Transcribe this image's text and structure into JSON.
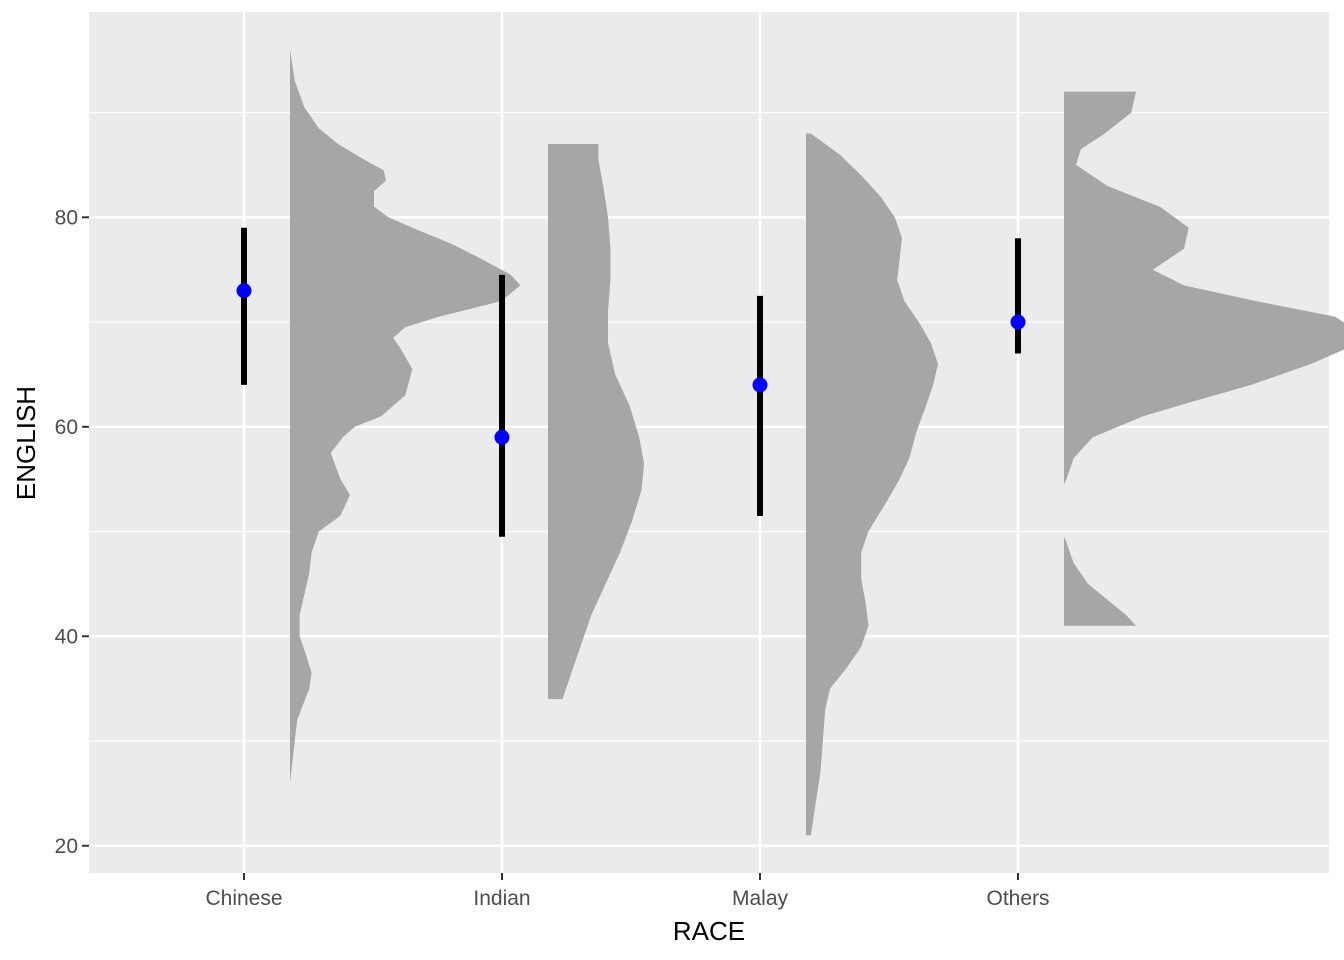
{
  "chart_data": {
    "type": "raincloud",
    "xlabel": "RACE",
    "ylabel": "ENGLISH",
    "ylim": [
      17.4,
      99.6
    ],
    "yticks": [
      20,
      40,
      60,
      80
    ],
    "grid": true,
    "panel_background": "#ebebeb",
    "grid_color": "#ffffff",
    "density_fill": "#a6a6a6",
    "point_color": "#0000ff",
    "interval_color": "#000000",
    "categories": [
      "Chinese",
      "Indian",
      "Malay",
      "Others"
    ],
    "groups": [
      {
        "category": "Chinese",
        "median": 73,
        "interval": [
          64,
          79
        ],
        "density": [
          [
            26,
            0.0
          ],
          [
            28,
            0.01
          ],
          [
            30,
            0.02
          ],
          [
            32,
            0.03
          ],
          [
            35,
            0.08
          ],
          [
            36.5,
            0.09
          ],
          [
            38,
            0.07
          ],
          [
            40,
            0.04
          ],
          [
            42,
            0.04
          ],
          [
            44,
            0.06
          ],
          [
            46,
            0.08
          ],
          [
            48,
            0.09
          ],
          [
            50,
            0.12
          ],
          [
            51.5,
            0.21
          ],
          [
            53.5,
            0.25
          ],
          [
            55,
            0.21
          ],
          [
            57.5,
            0.17
          ],
          [
            59,
            0.22
          ],
          [
            60,
            0.27
          ],
          [
            61,
            0.38
          ],
          [
            63,
            0.48
          ],
          [
            65.5,
            0.51
          ],
          [
            67.5,
            0.46
          ],
          [
            68.5,
            0.43
          ],
          [
            69.5,
            0.48
          ],
          [
            70.5,
            0.62
          ],
          [
            72,
            0.88
          ],
          [
            73.5,
            0.96
          ],
          [
            74.5,
            0.92
          ],
          [
            76,
            0.8
          ],
          [
            77.5,
            0.67
          ],
          [
            79,
            0.51
          ],
          [
            80,
            0.41
          ],
          [
            81,
            0.35
          ],
          [
            82.5,
            0.35
          ],
          [
            83.5,
            0.4
          ],
          [
            84.5,
            0.39
          ],
          [
            85.5,
            0.31
          ],
          [
            87,
            0.2
          ],
          [
            88.5,
            0.12
          ],
          [
            90.5,
            0.06
          ],
          [
            93,
            0.02
          ],
          [
            96,
            0.0
          ]
        ]
      },
      {
        "category": "Indian",
        "median": 59,
        "interval": [
          49.5,
          74.5
        ],
        "density": [
          [
            34,
            0.0
          ],
          [
            34,
            0.06
          ],
          [
            36,
            0.09
          ],
          [
            38,
            0.12
          ],
          [
            40,
            0.15
          ],
          [
            42,
            0.18
          ],
          [
            45,
            0.24
          ],
          [
            48,
            0.3
          ],
          [
            51,
            0.35
          ],
          [
            54,
            0.39
          ],
          [
            56.5,
            0.4
          ],
          [
            59,
            0.38
          ],
          [
            62,
            0.34
          ],
          [
            65,
            0.28
          ],
          [
            68,
            0.25
          ],
          [
            71,
            0.25
          ],
          [
            74,
            0.26
          ],
          [
            77,
            0.26
          ],
          [
            80,
            0.25
          ],
          [
            83,
            0.23
          ],
          [
            85.5,
            0.21
          ],
          [
            87,
            0.21
          ],
          [
            87,
            0.0
          ]
        ]
      },
      {
        "category": "Malay",
        "median": 64,
        "interval": [
          51.5,
          72.5
        ],
        "density": [
          [
            21,
            0.0
          ],
          [
            21,
            0.02
          ],
          [
            24,
            0.04
          ],
          [
            27,
            0.06
          ],
          [
            30,
            0.07
          ],
          [
            33,
            0.08
          ],
          [
            35,
            0.1
          ],
          [
            37,
            0.17
          ],
          [
            39,
            0.23
          ],
          [
            41,
            0.26
          ],
          [
            43,
            0.25
          ],
          [
            45.5,
            0.23
          ],
          [
            48,
            0.23
          ],
          [
            50,
            0.26
          ],
          [
            53,
            0.34
          ],
          [
            55,
            0.39
          ],
          [
            57,
            0.43
          ],
          [
            59.5,
            0.46
          ],
          [
            62,
            0.5
          ],
          [
            64,
            0.53
          ],
          [
            66,
            0.55
          ],
          [
            68,
            0.52
          ],
          [
            70,
            0.47
          ],
          [
            72,
            0.41
          ],
          [
            74,
            0.38
          ],
          [
            76,
            0.39
          ],
          [
            78,
            0.4
          ],
          [
            80,
            0.37
          ],
          [
            82,
            0.31
          ],
          [
            84,
            0.23
          ],
          [
            86,
            0.14
          ],
          [
            88,
            0.02
          ],
          [
            88,
            0.0
          ]
        ]
      },
      {
        "category": "Others",
        "median": 70,
        "interval": [
          67,
          78
        ],
        "density": [
          [
            41,
            0.0
          ],
          [
            41,
            0.3
          ],
          [
            42,
            0.26
          ],
          [
            43.5,
            0.18
          ],
          [
            45,
            0.1
          ],
          [
            47,
            0.04
          ],
          [
            49,
            0.01
          ],
          [
            49.5,
            0.0
          ],
          [
            54.5,
            0.0
          ],
          [
            55,
            0.01
          ],
          [
            57,
            0.04
          ],
          [
            59,
            0.12
          ],
          [
            61,
            0.33
          ],
          [
            62.5,
            0.55
          ],
          [
            64,
            0.78
          ],
          [
            66,
            1.03
          ],
          [
            67.5,
            1.18
          ],
          [
            69,
            1.23
          ],
          [
            70.5,
            1.13
          ],
          [
            72,
            0.8
          ],
          [
            73.5,
            0.5
          ],
          [
            75,
            0.37
          ],
          [
            77,
            0.5
          ],
          [
            79,
            0.52
          ],
          [
            81,
            0.4
          ],
          [
            83,
            0.18
          ],
          [
            85,
            0.05
          ],
          [
            86.5,
            0.07
          ],
          [
            88,
            0.17
          ],
          [
            90,
            0.28
          ],
          [
            92,
            0.3
          ],
          [
            92,
            0.0
          ]
        ]
      }
    ]
  }
}
